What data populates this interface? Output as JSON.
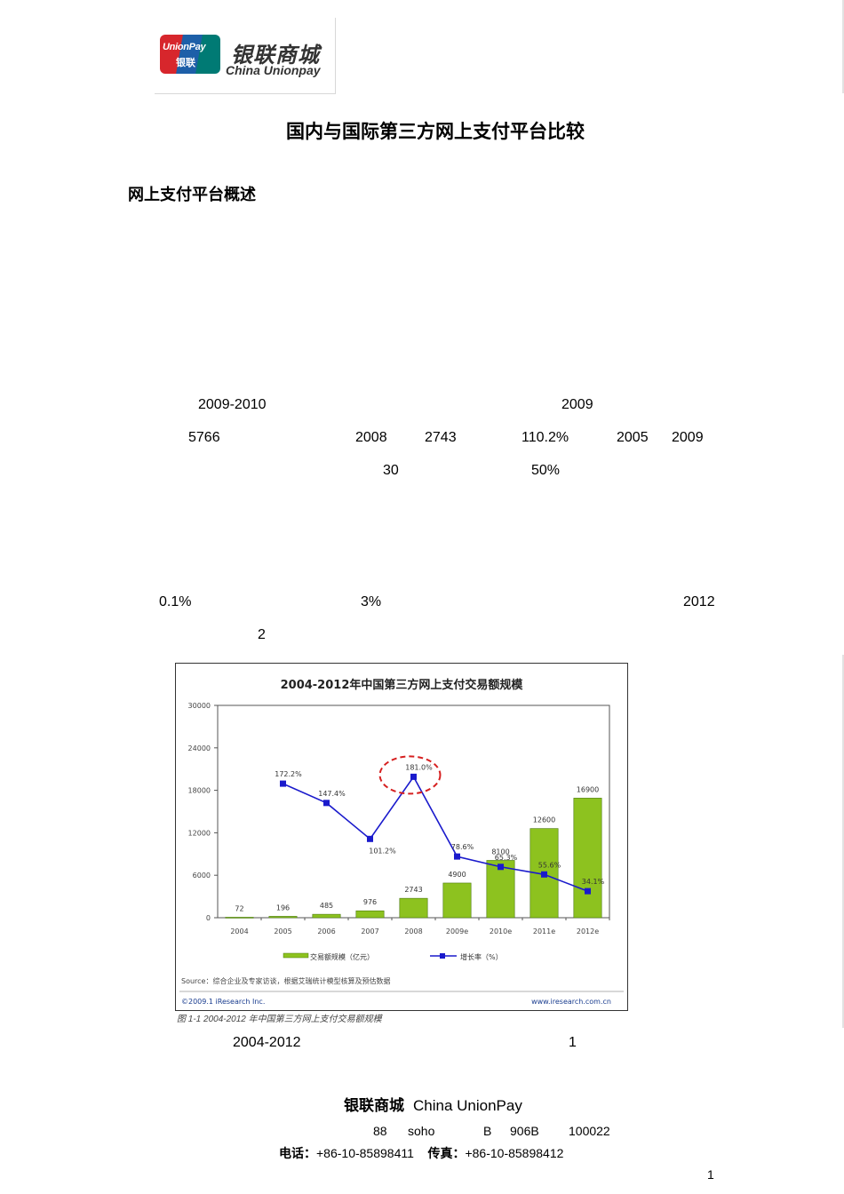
{
  "header": {
    "logo": {
      "badge_top": "UnionPay",
      "badge_bottom": "银联",
      "name_cn": "银联商城",
      "name_en": "China Unionpay"
    },
    "title": "国内与国际第三方网上支付平台比较"
  },
  "section": {
    "heading": "网上支付平台概述"
  },
  "body_tokens": {
    "line1": [
      "2009-2010",
      "2009"
    ],
    "line2": [
      "5766",
      "2008",
      "2743",
      "110.2%",
      "2005",
      "2009"
    ],
    "line3": [
      "30",
      "50%"
    ],
    "line4": [
      "0.1%",
      "3%",
      "2012"
    ],
    "line5": [
      "2"
    ],
    "after_chart": [
      "2004-2012",
      "1"
    ]
  },
  "chart_data": {
    "type": "bar",
    "title": "2004-2012年中国第三方网上支付交易额规模",
    "categories": [
      "2004",
      "2005",
      "2006",
      "2007",
      "2008",
      "2009e",
      "2010e",
      "2011e",
      "2012e"
    ],
    "series": [
      {
        "name": "交易额规模（亿元）",
        "type": "bar",
        "values": [
          72,
          196,
          485,
          976,
          2743,
          4900,
          8100,
          12600,
          16900
        ],
        "labels": [
          "72",
          "196",
          "485",
          "976",
          "2743",
          "4900",
          "8100",
          "12600",
          "16900"
        ],
        "color": "#8dc21f"
      },
      {
        "name": "增长率（%）",
        "type": "line",
        "values": [
          null,
          172.2,
          147.4,
          101.2,
          181.0,
          78.6,
          65.3,
          55.6,
          34.1
        ],
        "labels": [
          "",
          "172.2%",
          "147.4%",
          "101.2%",
          "181.0%",
          "78.6%",
          "65.3%",
          "55.6%",
          "34.1%"
        ],
        "color": "#1a1acc"
      }
    ],
    "yticks": [
      "0",
      "6000",
      "12000",
      "18000",
      "24000",
      "30000"
    ],
    "ylim": [
      0,
      30000
    ],
    "grid": false,
    "legend": "bottom",
    "highlight": "181.0%",
    "source": "Source：综合企业及专家访谈，根据艾瑞统计模型核算及预估数据",
    "copyright": "©2009.1 iResearch Inc.",
    "website": "www.iresearch.com.cn",
    "caption": "图 1-1 2004-2012 年中国第三方网上支付交易额规模"
  },
  "footer": {
    "brand_cn": "银联商城",
    "brand_en": "China UnionPay",
    "address_tokens": [
      "88",
      "soho",
      "B",
      "906B",
      "100022"
    ],
    "phone_label": "电话：",
    "phone": "+86-10-85898411",
    "fax_label": "传真：",
    "fax": "+86-10-85898412"
  },
  "page_number": "1"
}
